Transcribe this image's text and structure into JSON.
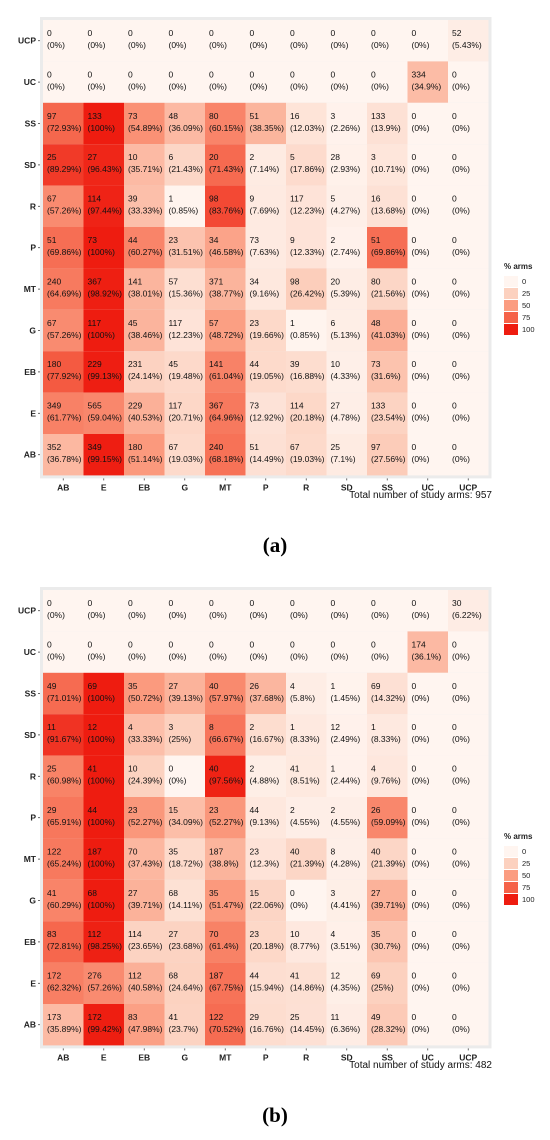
{
  "chart_data": [
    {
      "type": "heatmap",
      "panel_label": "(a)",
      "footnote": "Total number of study arms: 957",
      "x_categories": [
        "AB",
        "E",
        "EB",
        "G",
        "MT",
        "P",
        "R",
        "SD",
        "SS",
        "UC",
        "UCP"
      ],
      "y_categories": [
        "AB",
        "E",
        "EB",
        "G",
        "MT",
        "P",
        "R",
        "SD",
        "SS",
        "UC",
        "UCP"
      ],
      "legend": {
        "title": "% arms",
        "ticks": [
          "0",
          "25",
          "50",
          "75",
          "100"
        ],
        "colors": [
          "#fff5f0",
          "#fcd1bf",
          "#fb9c80",
          "#f56248",
          "#ee1c10"
        ]
      },
      "cells": {
        "UCP": [
          [
            "0",
            "(0%)"
          ],
          [
            "0",
            "(0%)"
          ],
          [
            "0",
            "(0%)"
          ],
          [
            "0",
            "(0%)"
          ],
          [
            "0",
            "(0%)"
          ],
          [
            "0",
            "(0%)"
          ],
          [
            "0",
            "(0%)"
          ],
          [
            "0",
            "(0%)"
          ],
          [
            "0",
            "(0%)"
          ],
          [
            "0",
            "(0%)"
          ],
          [
            "52",
            "(5.43%)"
          ]
        ],
        "UC": [
          [
            "0",
            "(0%)"
          ],
          [
            "0",
            "(0%)"
          ],
          [
            "0",
            "(0%)"
          ],
          [
            "0",
            "(0%)"
          ],
          [
            "0",
            "(0%)"
          ],
          [
            "0",
            "(0%)"
          ],
          [
            "0",
            "(0%)"
          ],
          [
            "0",
            "(0%)"
          ],
          [
            "0",
            "(0%)"
          ],
          [
            "334",
            "(34.9%)"
          ],
          [
            "0",
            "(0%)"
          ]
        ],
        "SS": [
          [
            "97",
            "(72.93%)"
          ],
          [
            "133",
            "(100%)"
          ],
          [
            "73",
            "(54.89%)"
          ],
          [
            "48",
            "(36.09%)"
          ],
          [
            "80",
            "(60.15%)"
          ],
          [
            "51",
            "(38.35%)"
          ],
          [
            "16",
            "(12.03%)"
          ],
          [
            "3",
            "(2.26%)"
          ],
          [
            "133",
            "(13.9%)"
          ],
          [
            "0",
            "(0%)"
          ],
          [
            "0",
            "(0%)"
          ]
        ],
        "SD": [
          [
            "25",
            "(89.29%)"
          ],
          [
            "27",
            "(96.43%)"
          ],
          [
            "10",
            "(35.71%)"
          ],
          [
            "6",
            "(21.43%)"
          ],
          [
            "20",
            "(71.43%)"
          ],
          [
            "2",
            "(7.14%)"
          ],
          [
            "5",
            "(17.86%)"
          ],
          [
            "28",
            "(2.93%)"
          ],
          [
            "3",
            "(10.71%)"
          ],
          [
            "0",
            "(0%)"
          ],
          [
            "0",
            "(0%)"
          ]
        ],
        "R": [
          [
            "67",
            "(57.26%)"
          ],
          [
            "114",
            "(97.44%)"
          ],
          [
            "39",
            "(33.33%)"
          ],
          [
            "1",
            "(0.85%)"
          ],
          [
            "98",
            "(83.76%)"
          ],
          [
            "9",
            "(7.69%)"
          ],
          [
            "117",
            "(12.23%)"
          ],
          [
            "5",
            "(4.27%)"
          ],
          [
            "16",
            "(13.68%)"
          ],
          [
            "0",
            "(0%)"
          ],
          [
            "0",
            "(0%)"
          ]
        ],
        "P": [
          [
            "51",
            "(69.86%)"
          ],
          [
            "73",
            "(100%)"
          ],
          [
            "44",
            "(60.27%)"
          ],
          [
            "23",
            "(31.51%)"
          ],
          [
            "34",
            "(46.58%)"
          ],
          [
            "73",
            "(7.63%)"
          ],
          [
            "9",
            "(12.33%)"
          ],
          [
            "2",
            "(2.74%)"
          ],
          [
            "51",
            "(69.86%)"
          ],
          [
            "0",
            "(0%)"
          ],
          [
            "0",
            "(0%)"
          ]
        ],
        "MT": [
          [
            "240",
            "(64.69%)"
          ],
          [
            "367",
            "(98.92%)"
          ],
          [
            "141",
            "(38.01%)"
          ],
          [
            "57",
            "(15.36%)"
          ],
          [
            "371",
            "(38.77%)"
          ],
          [
            "34",
            "(9.16%)"
          ],
          [
            "98",
            "(26.42%)"
          ],
          [
            "20",
            "(5.39%)"
          ],
          [
            "80",
            "(21.56%)"
          ],
          [
            "0",
            "(0%)"
          ],
          [
            "0",
            "(0%)"
          ]
        ],
        "G": [
          [
            "67",
            "(57.26%)"
          ],
          [
            "117",
            "(100%)"
          ],
          [
            "45",
            "(38.46%)"
          ],
          [
            "117",
            "(12.23%)"
          ],
          [
            "57",
            "(48.72%)"
          ],
          [
            "23",
            "(19.66%)"
          ],
          [
            "1",
            "(0.85%)"
          ],
          [
            "6",
            "(5.13%)"
          ],
          [
            "48",
            "(41.03%)"
          ],
          [
            "0",
            "(0%)"
          ],
          [
            "0",
            "(0%)"
          ]
        ],
        "EB": [
          [
            "180",
            "(77.92%)"
          ],
          [
            "229",
            "(99.13%)"
          ],
          [
            "231",
            "(24.14%)"
          ],
          [
            "45",
            "(19.48%)"
          ],
          [
            "141",
            "(61.04%)"
          ],
          [
            "44",
            "(19.05%)"
          ],
          [
            "39",
            "(16.88%)"
          ],
          [
            "10",
            "(4.33%)"
          ],
          [
            "73",
            "(31.6%)"
          ],
          [
            "0",
            "(0%)"
          ],
          [
            "0",
            "(0%)"
          ]
        ],
        "E": [
          [
            "349",
            "(61.77%)"
          ],
          [
            "565",
            "(59.04%)"
          ],
          [
            "229",
            "(40.53%)"
          ],
          [
            "117",
            "(20.71%)"
          ],
          [
            "367",
            "(64.96%)"
          ],
          [
            "73",
            "(12.92%)"
          ],
          [
            "114",
            "(20.18%)"
          ],
          [
            "27",
            "(4.78%)"
          ],
          [
            "133",
            "(23.54%)"
          ],
          [
            "0",
            "(0%)"
          ],
          [
            "0",
            "(0%)"
          ]
        ],
        "AB": [
          [
            "352",
            "(36.78%)"
          ],
          [
            "349",
            "(99.15%)"
          ],
          [
            "180",
            "(51.14%)"
          ],
          [
            "67",
            "(19.03%)"
          ],
          [
            "240",
            "(68.18%)"
          ],
          [
            "51",
            "(14.49%)"
          ],
          [
            "67",
            "(19.03%)"
          ],
          [
            "25",
            "(7.1%)"
          ],
          [
            "97",
            "(27.56%)"
          ],
          [
            "0",
            "(0%)"
          ],
          [
            "0",
            "(0%)"
          ]
        ]
      }
    },
    {
      "type": "heatmap",
      "panel_label": "(b)",
      "footnote": "Total number of study arms: 482",
      "x_categories": [
        "AB",
        "E",
        "EB",
        "G",
        "MT",
        "P",
        "R",
        "SD",
        "SS",
        "UC",
        "UCP"
      ],
      "y_categories": [
        "AB",
        "E",
        "EB",
        "G",
        "MT",
        "P",
        "R",
        "SD",
        "SS",
        "UC",
        "UCP"
      ],
      "legend": {
        "title": "% arms",
        "ticks": [
          "0",
          "25",
          "50",
          "75",
          "100"
        ],
        "colors": [
          "#fff5f0",
          "#fcd1bf",
          "#fb9c80",
          "#f56248",
          "#ee1c10"
        ]
      },
      "cells": {
        "UCP": [
          [
            "0",
            "(0%)"
          ],
          [
            "0",
            "(0%)"
          ],
          [
            "0",
            "(0%)"
          ],
          [
            "0",
            "(0%)"
          ],
          [
            "0",
            "(0%)"
          ],
          [
            "0",
            "(0%)"
          ],
          [
            "0",
            "(0%)"
          ],
          [
            "0",
            "(0%)"
          ],
          [
            "0",
            "(0%)"
          ],
          [
            "0",
            "(0%)"
          ],
          [
            "30",
            "(6.22%)"
          ]
        ],
        "UC": [
          [
            "0",
            "(0%)"
          ],
          [
            "0",
            "(0%)"
          ],
          [
            "0",
            "(0%)"
          ],
          [
            "0",
            "(0%)"
          ],
          [
            "0",
            "(0%)"
          ],
          [
            "0",
            "(0%)"
          ],
          [
            "0",
            "(0%)"
          ],
          [
            "0",
            "(0%)"
          ],
          [
            "0",
            "(0%)"
          ],
          [
            "174",
            "(36.1%)"
          ],
          [
            "0",
            "(0%)"
          ]
        ],
        "SS": [
          [
            "49",
            "(71.01%)"
          ],
          [
            "69",
            "(100%)"
          ],
          [
            "35",
            "(50.72%)"
          ],
          [
            "27",
            "(39.13%)"
          ],
          [
            "40",
            "(57.97%)"
          ],
          [
            "26",
            "(37.68%)"
          ],
          [
            "4",
            "(5.8%)"
          ],
          [
            "1",
            "(1.45%)"
          ],
          [
            "69",
            "(14.32%)"
          ],
          [
            "0",
            "(0%)"
          ],
          [
            "0",
            "(0%)"
          ]
        ],
        "SD": [
          [
            "11",
            "(91.67%)"
          ],
          [
            "12",
            "(100%)"
          ],
          [
            "4",
            "(33.33%)"
          ],
          [
            "3",
            "(25%)"
          ],
          [
            "8",
            "(66.67%)"
          ],
          [
            "2",
            "(16.67%)"
          ],
          [
            "1",
            "(8.33%)"
          ],
          [
            "12",
            "(2.49%)"
          ],
          [
            "1",
            "(8.33%)"
          ],
          [
            "0",
            "(0%)"
          ],
          [
            "0",
            "(0%)"
          ]
        ],
        "R": [
          [
            "25",
            "(60.98%)"
          ],
          [
            "41",
            "(100%)"
          ],
          [
            "10",
            "(24.39%)"
          ],
          [
            "0",
            "(0%)"
          ],
          [
            "40",
            "(97.56%)"
          ],
          [
            "2",
            "(4.88%)"
          ],
          [
            "41",
            "(8.51%)"
          ],
          [
            "1",
            "(2.44%)"
          ],
          [
            "4",
            "(9.76%)"
          ],
          [
            "0",
            "(0%)"
          ],
          [
            "0",
            "(0%)"
          ]
        ],
        "P": [
          [
            "29",
            "(65.91%)"
          ],
          [
            "44",
            "(100%)"
          ],
          [
            "23",
            "(52.27%)"
          ],
          [
            "15",
            "(34.09%)"
          ],
          [
            "23",
            "(52.27%)"
          ],
          [
            "44",
            "(9.13%)"
          ],
          [
            "2",
            "(4.55%)"
          ],
          [
            "2",
            "(4.55%)"
          ],
          [
            "26",
            "(59.09%)"
          ],
          [
            "0",
            "(0%)"
          ],
          [
            "0",
            "(0%)"
          ]
        ],
        "MT": [
          [
            "122",
            "(65.24%)"
          ],
          [
            "187",
            "(100%)"
          ],
          [
            "70",
            "(37.43%)"
          ],
          [
            "35",
            "(18.72%)"
          ],
          [
            "187",
            "(38.8%)"
          ],
          [
            "23",
            "(12.3%)"
          ],
          [
            "40",
            "(21.39%)"
          ],
          [
            "8",
            "(4.28%)"
          ],
          [
            "40",
            "(21.39%)"
          ],
          [
            "0",
            "(0%)"
          ],
          [
            "0",
            "(0%)"
          ]
        ],
        "G": [
          [
            "41",
            "(60.29%)"
          ],
          [
            "68",
            "(100%)"
          ],
          [
            "27",
            "(39.71%)"
          ],
          [
            "68",
            "(14.11%)"
          ],
          [
            "35",
            "(51.47%)"
          ],
          [
            "15",
            "(22.06%)"
          ],
          [
            "0",
            "(0%)"
          ],
          [
            "3",
            "(4.41%)"
          ],
          [
            "27",
            "(39.71%)"
          ],
          [
            "0",
            "(0%)"
          ],
          [
            "0",
            "(0%)"
          ]
        ],
        "EB": [
          [
            "83",
            "(72.81%)"
          ],
          [
            "112",
            "(98.25%)"
          ],
          [
            "114",
            "(23.65%)"
          ],
          [
            "27",
            "(23.68%)"
          ],
          [
            "70",
            "(61.4%)"
          ],
          [
            "23",
            "(20.18%)"
          ],
          [
            "10",
            "(8.77%)"
          ],
          [
            "4",
            "(3.51%)"
          ],
          [
            "35",
            "(30.7%)"
          ],
          [
            "0",
            "(0%)"
          ],
          [
            "0",
            "(0%)"
          ]
        ],
        "E": [
          [
            "172",
            "(62.32%)"
          ],
          [
            "276",
            "(57.26%)"
          ],
          [
            "112",
            "(40.58%)"
          ],
          [
            "68",
            "(24.64%)"
          ],
          [
            "187",
            "(67.75%)"
          ],
          [
            "44",
            "(15.94%)"
          ],
          [
            "41",
            "(14.86%)"
          ],
          [
            "12",
            "(4.35%)"
          ],
          [
            "69",
            "(25%)"
          ],
          [
            "0",
            "(0%)"
          ],
          [
            "0",
            "(0%)"
          ]
        ],
        "AB": [
          [
            "173",
            "(35.89%)"
          ],
          [
            "172",
            "(99.42%)"
          ],
          [
            "83",
            "(47.98%)"
          ],
          [
            "41",
            "(23.7%)"
          ],
          [
            "122",
            "(70.52%)"
          ],
          [
            "29",
            "(16.76%)"
          ],
          [
            "25",
            "(14.45%)"
          ],
          [
            "11",
            "(6.36%)"
          ],
          [
            "49",
            "(28.32%)"
          ],
          [
            "0",
            "(0%)"
          ],
          [
            "0",
            "(0%)"
          ]
        ]
      }
    }
  ]
}
